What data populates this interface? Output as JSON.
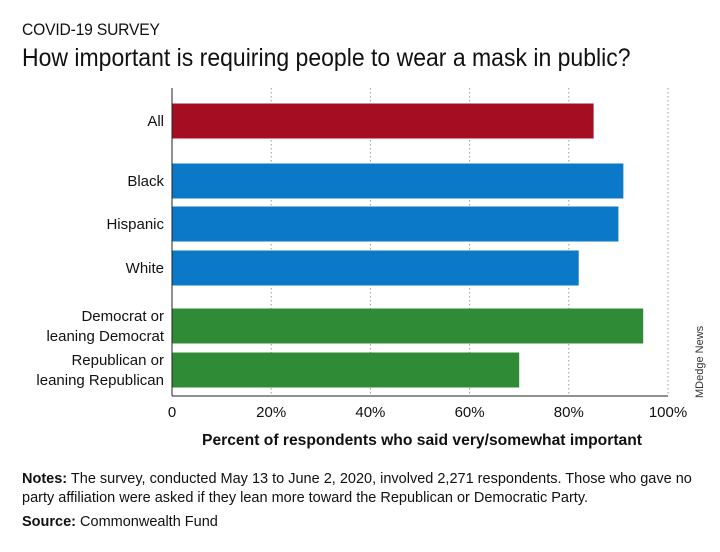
{
  "header": {
    "kicker": "COVID-19 SURVEY",
    "title": "How important is requiring people to wear a mask in public?"
  },
  "chart_data": {
    "type": "bar",
    "orientation": "horizontal",
    "categories": [
      "All",
      "Black",
      "Hispanic",
      "White",
      "Democrat or\nleaning Democrat",
      "Republican or\nleaning Republican"
    ],
    "values": [
      85,
      91,
      90,
      82,
      95,
      70
    ],
    "groups": [
      0,
      1,
      1,
      1,
      2,
      2
    ],
    "colors": [
      "#a50d22",
      "#0b78c8",
      "#0b78c8",
      "#0b78c8",
      "#2f8b36",
      "#2f8b36"
    ],
    "xlim": [
      0,
      100
    ],
    "xticks": [
      0,
      20,
      40,
      60,
      80,
      100
    ],
    "xtick_labels": [
      "0",
      "20%",
      "40%",
      "60%",
      "80%",
      "100%"
    ],
    "xlabel": "Percent of respondents who said very/somewhat important",
    "grid": "vertical dotted"
  },
  "footer": {
    "notes_label": "Notes:",
    "notes_text": " The survey, conducted May 13 to June 2, 2020, involved 2,271 respondents. Those who gave no party affiliation were asked if they lean more toward the Republican or Democratic Party.",
    "source_label": "Source:",
    "source_text": " Commonwealth Fund",
    "credit": "MDedge News"
  }
}
